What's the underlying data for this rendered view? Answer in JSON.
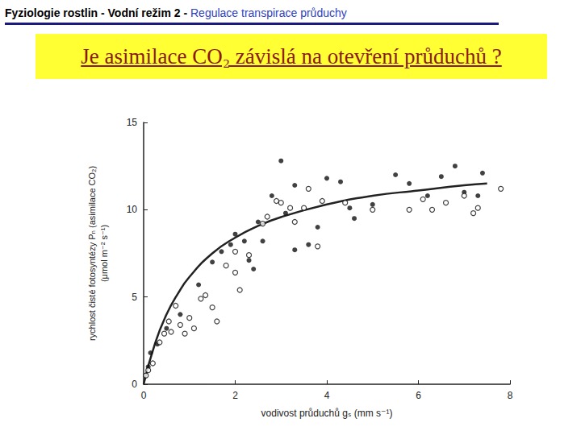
{
  "header": {
    "text": "Fyziologie rostlin - Vodní režim 2 -",
    "highlight": "Regulace transpirace průduchy"
  },
  "chart_data": {
    "type": "scatter",
    "title": "Je asimilace CO₂ závislá na otevření průduchů ?",
    "xlabel": "vodivost průduchů gₛ (mm s⁻¹)",
    "ylabel": "rychlost čisté fotosyntézy Pₙ (asimilace CO₂)\n(μmol m⁻² s⁻¹)",
    "xlim": [
      0,
      8
    ],
    "xticks": [
      0,
      2,
      4,
      6,
      8
    ],
    "ylim": [
      0,
      15
    ],
    "yticks": [
      0,
      5,
      10,
      15
    ],
    "grid": false,
    "series": [
      {
        "type": "scatter",
        "marker": "filled",
        "color": "#111111",
        "x": [
          0.1,
          0.15,
          0.3,
          0.5,
          0.8,
          1.2,
          1.5,
          1.7,
          1.9,
          2.0,
          2.2,
          2.3,
          2.4,
          2.5,
          2.6,
          2.8,
          3.0,
          3.1,
          3.3,
          3.3,
          3.6,
          3.8,
          4.0,
          4.3,
          4.5,
          4.6,
          5.0,
          5.5,
          5.8,
          6.2,
          6.5,
          6.8,
          7.0,
          7.3,
          7.4
        ],
        "values": [
          1.0,
          1.8,
          2.3,
          3.2,
          4.0,
          5.7,
          7.0,
          7.6,
          8.0,
          8.6,
          8.2,
          7.1,
          6.6,
          9.3,
          8.2,
          10.8,
          12.8,
          9.8,
          11.4,
          7.7,
          8.0,
          9.0,
          11.8,
          11.6,
          10.1,
          9.5,
          10.3,
          12.0,
          11.5,
          10.8,
          11.9,
          12.5,
          11.0,
          10.8,
          12.1
        ]
      },
      {
        "type": "scatter",
        "marker": "open",
        "color": "#111111",
        "x": [
          0.05,
          0.1,
          0.2,
          0.35,
          0.45,
          0.55,
          0.6,
          0.7,
          0.8,
          0.9,
          1.0,
          1.1,
          1.25,
          1.35,
          1.5,
          1.6,
          1.8,
          2.0,
          2.0,
          2.1,
          2.3,
          2.6,
          2.7,
          2.9,
          3.0,
          3.2,
          3.3,
          3.5,
          3.6,
          3.8,
          3.9,
          4.4,
          5.0,
          5.8,
          6.1,
          6.3,
          6.6,
          7.0,
          7.2,
          7.3,
          7.8
        ],
        "values": [
          0.5,
          0.8,
          1.2,
          2.4,
          2.9,
          3.6,
          3.0,
          4.5,
          3.4,
          2.9,
          3.8,
          3.2,
          4.9,
          5.1,
          4.4,
          3.6,
          6.8,
          7.6,
          6.4,
          5.4,
          7.4,
          9.2,
          9.6,
          10.5,
          10.4,
          10.1,
          9.3,
          10.1,
          11.2,
          7.9,
          10.5,
          10.4,
          10.0,
          10.0,
          10.6,
          10.0,
          10.4,
          10.8,
          9.8,
          10.1,
          11.2
        ]
      },
      {
        "type": "line",
        "color": "#222222",
        "line_style": "solid",
        "x": [
          0,
          0.25,
          0.5,
          0.75,
          1,
          1.5,
          2,
          2.5,
          3,
          4,
          5,
          6,
          7,
          7.5
        ],
        "values": [
          0,
          2.35,
          4.0,
          5.2,
          6.15,
          7.5,
          8.4,
          9.07,
          9.58,
          10.3,
          10.8,
          11.1,
          11.4,
          11.5
        ]
      }
    ]
  }
}
